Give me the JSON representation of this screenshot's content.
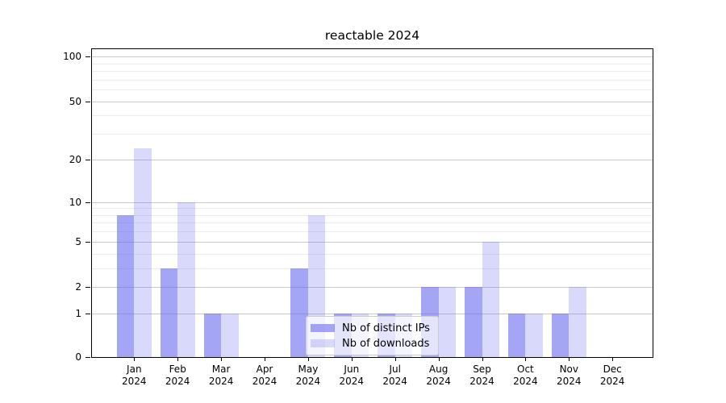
{
  "title": "reactable 2024",
  "legend": {
    "items": [
      {
        "label": "Nb of distinct IPs",
        "color": "rgba(105,105,240,0.6)"
      },
      {
        "label": "Nb of downloads",
        "color": "rgba(105,105,240,0.25)"
      }
    ]
  },
  "colors": {
    "bar_base": "#6969f0",
    "bar_dark": "rgba(105,105,240,0.6)",
    "bar_light": "rgba(105,105,240,0.25)",
    "grid_major": "#c8c8c8",
    "grid_minor": "#ececec",
    "axis": "#000000",
    "background": "#ffffff"
  },
  "chart_data": {
    "type": "bar",
    "title": "reactable 2024",
    "categories": [
      "Jan 2024",
      "Feb 2024",
      "Mar 2024",
      "Apr 2024",
      "May 2024",
      "Jun 2024",
      "Jul 2024",
      "Aug 2024",
      "Sep 2024",
      "Oct 2024",
      "Nov 2024",
      "Dec 2024"
    ],
    "series": [
      {
        "name": "Nb of distinct IPs",
        "values": [
          8,
          3,
          1,
          0,
          3,
          1,
          1,
          2,
          2,
          1,
          1,
          0
        ]
      },
      {
        "name": "Nb of downloads",
        "values": [
          24,
          10,
          1,
          0,
          8,
          1,
          1,
          2,
          5,
          1,
          2,
          0
        ]
      }
    ],
    "xlabel": "",
    "ylabel": "",
    "yscale": "symlog (position ~ log(1+value))",
    "ylim": [
      0,
      100
    ],
    "y_major_ticks": [
      100,
      50,
      20,
      10,
      5,
      2,
      1,
      0
    ],
    "y_minor_ticks": [
      3,
      4,
      6,
      7,
      8,
      9,
      30,
      40,
      60,
      70,
      80,
      90
    ],
    "grid": true,
    "legend_position": "lower center"
  }
}
